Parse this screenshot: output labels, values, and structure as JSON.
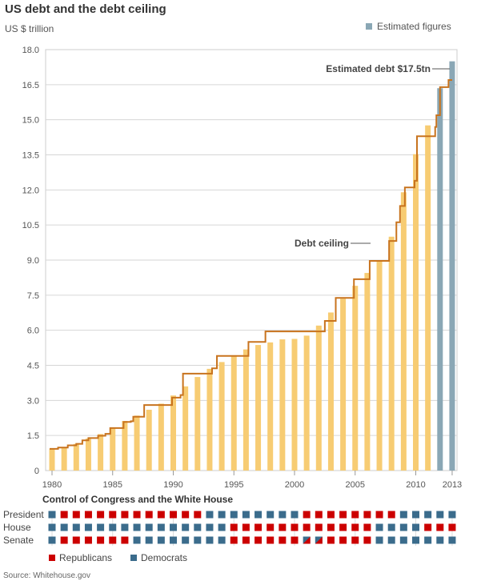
{
  "chart_data": {
    "type": "bar",
    "title": "US debt and the debt ceiling",
    "ylabel": "US $ trillion",
    "ylim": [
      0,
      18
    ],
    "yticks": [
      "0",
      "1.5",
      "3.0",
      "4.5",
      "6.0",
      "7.5",
      "9.0",
      "10.5",
      "12.0",
      "13.5",
      "15.0",
      "16.5",
      "18.0"
    ],
    "xticks": [
      "1980",
      "1985",
      "1990",
      "1995",
      "2000",
      "2005",
      "2010",
      "2013"
    ],
    "grid": true,
    "legend": {
      "label": "Estimated figures",
      "placement": "top-right"
    },
    "years": [
      1980,
      1981,
      1982,
      1983,
      1984,
      1985,
      1986,
      1987,
      1988,
      1989,
      1990,
      1991,
      1992,
      1993,
      1994,
      1995,
      1996,
      1997,
      1998,
      1999,
      2000,
      2001,
      2002,
      2003,
      2004,
      2005,
      2006,
      2007,
      2008,
      2009,
      2010,
      2011,
      2012,
      2013
    ],
    "series": [
      {
        "name": "Debt",
        "values": [
          0.91,
          1.0,
          1.14,
          1.37,
          1.56,
          1.82,
          2.12,
          2.35,
          2.6,
          2.86,
          3.21,
          3.6,
          4.0,
          4.35,
          4.64,
          4.92,
          5.18,
          5.37,
          5.48,
          5.61,
          5.63,
          5.77,
          6.2,
          6.76,
          7.35,
          7.9,
          8.45,
          8.95,
          10.0,
          11.9,
          13.53,
          14.76,
          16.35,
          17.5
        ],
        "estimated_from": 2012
      },
      {
        "name": "Debt ceiling",
        "type": "step",
        "points": [
          [
            1979.8,
            0.93
          ],
          [
            1980.5,
            0.985
          ],
          [
            1981.3,
            1.08
          ],
          [
            1982.0,
            1.14
          ],
          [
            1982.5,
            1.29
          ],
          [
            1983.0,
            1.39
          ],
          [
            1983.8,
            1.49
          ],
          [
            1984.4,
            1.57
          ],
          [
            1984.8,
            1.82
          ],
          [
            1985.9,
            2.08
          ],
          [
            1986.5,
            2.11
          ],
          [
            1986.7,
            2.3
          ],
          [
            1987.6,
            2.8
          ],
          [
            1989.9,
            3.12
          ],
          [
            1990.6,
            3.23
          ],
          [
            1990.8,
            4.145
          ],
          [
            1993.2,
            4.37
          ],
          [
            1993.6,
            4.9
          ],
          [
            1996.2,
            5.5
          ],
          [
            1997.6,
            5.95
          ],
          [
            2002.5,
            6.4
          ],
          [
            2003.4,
            7.384
          ],
          [
            2004.9,
            8.184
          ],
          [
            2006.2,
            8.965
          ],
          [
            2007.8,
            9.815
          ],
          [
            2008.4,
            10.615
          ],
          [
            2008.7,
            11.315
          ],
          [
            2009.1,
            12.104
          ],
          [
            2009.9,
            12.394
          ],
          [
            2010.1,
            14.294
          ],
          [
            2011.6,
            14.694
          ],
          [
            2011.7,
            15.194
          ],
          [
            2012.0,
            16.394
          ],
          [
            2012.7,
            16.699
          ],
          [
            2013.0,
            16.699
          ]
        ]
      }
    ],
    "annotations": [
      "Estimated debt $17.5tn",
      "Debt ceiling"
    ],
    "colors": {
      "debt": "#f7cc73",
      "estimated": "#8aa7b5",
      "ceiling": "#c8731e",
      "republicans": "#cc0000",
      "democrats": "#3b6c8c"
    }
  },
  "control": {
    "title": "Control of Congress and the White House",
    "rows": [
      {
        "label": "President",
        "parties": "DRRRRRRRRRRRRDDDDDDDDRRRRRRRRDDDDD"
      },
      {
        "label": "House",
        "parties": "DDDDDDDDDDDDDDDRRRRRRRRRRRRDDDDRRR"
      },
      {
        "label": "Senate",
        "parties": "DRRRRRRDDDDDDDDRRRRRRSSRRRRDDDDDDD"
      }
    ],
    "legend": [
      {
        "label": "Republicans",
        "party": "R"
      },
      {
        "label": "Democrats",
        "party": "D"
      }
    ]
  },
  "source": "Source: Whitehouse.gov"
}
